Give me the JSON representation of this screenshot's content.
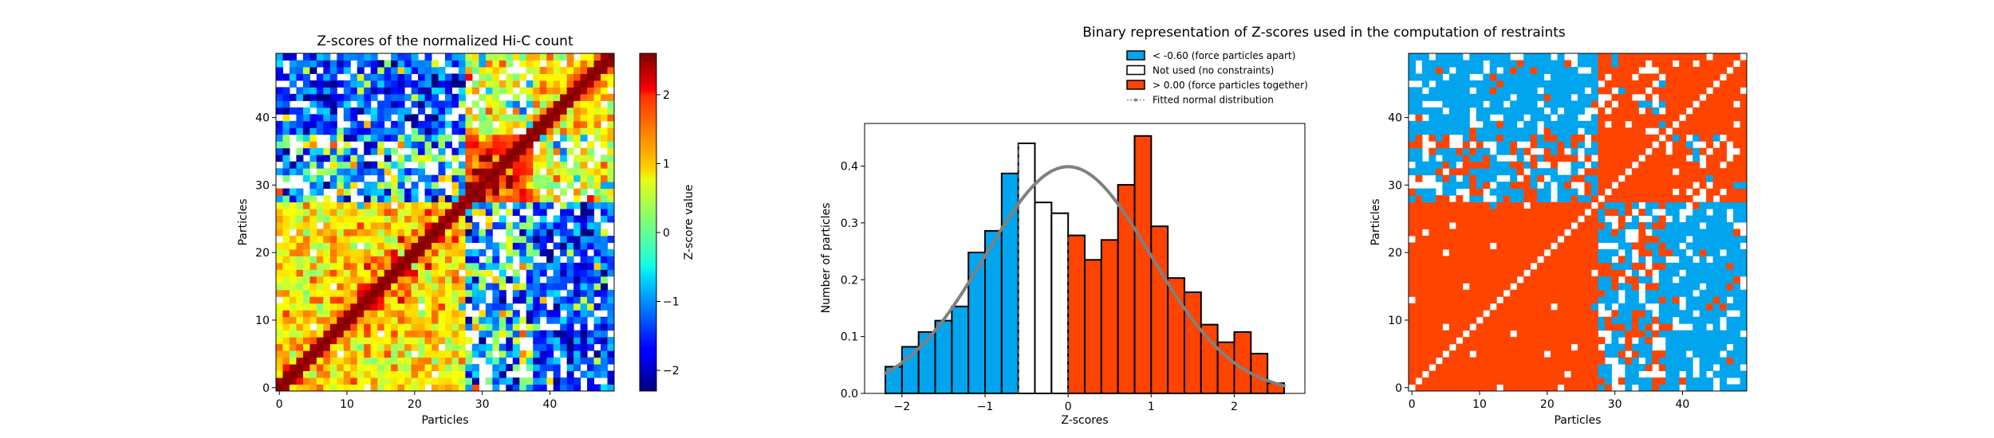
{
  "suptitle": "Binary representation of Z-scores used in the computation of restraints",
  "colors": {
    "neg": "#00a5ee",
    "notused": "#ffffff",
    "pos": "#ff4400",
    "fit": "#808080",
    "diag": "#ffffff",
    "edge": "#000000"
  },
  "chart_data": [
    {
      "type": "heatmap",
      "title": "Z-scores of the normalized Hi-C count",
      "xlabel": "Particles",
      "ylabel": "Particles",
      "size": 50,
      "xlim": [
        -0.5,
        49.5
      ],
      "ylim": [
        -0.5,
        49.5
      ],
      "xticks": [
        0,
        10,
        20,
        30,
        40
      ],
      "yticks": [
        0,
        10,
        20,
        30,
        40
      ],
      "colormap": "jet",
      "masked_range": [
        -0.6,
        0.0
      ],
      "domains": [
        [
          0,
          27
        ],
        [
          28,
          37
        ],
        [
          38,
          49
        ]
      ],
      "colorbar": {
        "label": "Z-score value",
        "vmin": -2.3,
        "vmax": 2.6,
        "ticks": [
          -2,
          -1,
          0,
          1,
          2
        ],
        "tick_labels": [
          "−2",
          "−1",
          "0",
          "1",
          "2"
        ]
      }
    },
    {
      "type": "bar",
      "title": "",
      "xlabel": "Z-scores",
      "ylabel": "Number of particles",
      "xlim": [
        -2.45,
        2.85
      ],
      "ylim": [
        0,
        0.475
      ],
      "xticks": [
        -2,
        -1,
        0,
        1,
        2
      ],
      "xtick_labels": [
        "−2",
        "−1",
        "0",
        "1",
        "2"
      ],
      "yticks": [
        0.0,
        0.1,
        0.2,
        0.3,
        0.4
      ],
      "ytick_labels": [
        "0.0",
        "0.1",
        "0.2",
        "0.3",
        "0.4"
      ],
      "bin_width": 0.2,
      "lower_threshold": -0.6,
      "upper_threshold": 0.0,
      "bins": [
        {
          "left": -2.2,
          "value": 0.047,
          "group": "neg"
        },
        {
          "left": -2.0,
          "value": 0.082,
          "group": "neg"
        },
        {
          "left": -1.8,
          "value": 0.108,
          "group": "neg"
        },
        {
          "left": -1.6,
          "value": 0.128,
          "group": "neg"
        },
        {
          "left": -1.4,
          "value": 0.153,
          "group": "neg"
        },
        {
          "left": -1.2,
          "value": 0.248,
          "group": "neg"
        },
        {
          "left": -1.0,
          "value": 0.286,
          "group": "neg"
        },
        {
          "left": -0.8,
          "value": 0.387,
          "group": "neg"
        },
        {
          "left": -0.6,
          "value": 0.44,
          "group": "notused"
        },
        {
          "left": -0.4,
          "value": 0.336,
          "group": "notused"
        },
        {
          "left": -0.2,
          "value": 0.317,
          "group": "notused"
        },
        {
          "left": 0.0,
          "value": 0.278,
          "group": "pos"
        },
        {
          "left": 0.2,
          "value": 0.235,
          "group": "pos"
        },
        {
          "left": 0.4,
          "value": 0.27,
          "group": "pos"
        },
        {
          "left": 0.6,
          "value": 0.367,
          "group": "pos"
        },
        {
          "left": 0.8,
          "value": 0.453,
          "group": "pos"
        },
        {
          "left": 1.0,
          "value": 0.294,
          "group": "pos"
        },
        {
          "left": 1.2,
          "value": 0.203,
          "group": "pos"
        },
        {
          "left": 1.4,
          "value": 0.178,
          "group": "pos"
        },
        {
          "left": 1.6,
          "value": 0.121,
          "group": "pos"
        },
        {
          "left": 1.8,
          "value": 0.09,
          "group": "pos"
        },
        {
          "left": 2.0,
          "value": 0.108,
          "group": "pos"
        },
        {
          "left": 2.2,
          "value": 0.07,
          "group": "pos"
        },
        {
          "left": 2.4,
          "value": 0.018,
          "group": "pos"
        }
      ],
      "fit": {
        "name": "Fitted normal distribution",
        "mean": 0.0,
        "std": 1.0
      },
      "legend": {
        "position": "top-center",
        "items": [
          {
            "label": "< -0.60 (force particles apart)",
            "group": "neg"
          },
          {
            "label": "Not used (no constraints)",
            "group": "notused"
          },
          {
            "label": "> 0.00 (force particles together)",
            "group": "pos"
          },
          {
            "label": "Fitted normal distribution",
            "group": "fit"
          }
        ]
      }
    },
    {
      "type": "heatmap",
      "title": "",
      "xlabel": "Particles",
      "ylabel": "Particles",
      "size": 50,
      "xlim": [
        -0.5,
        49.5
      ],
      "ylim": [
        -0.5,
        49.5
      ],
      "xticks": [
        0,
        10,
        20,
        30,
        40
      ],
      "yticks": [
        0,
        10,
        20,
        30,
        40
      ],
      "binary_colors": [
        "neg",
        "notused",
        "pos"
      ],
      "domains": [
        [
          0,
          27
        ],
        [
          28,
          37
        ],
        [
          38,
          49
        ]
      ]
    }
  ]
}
